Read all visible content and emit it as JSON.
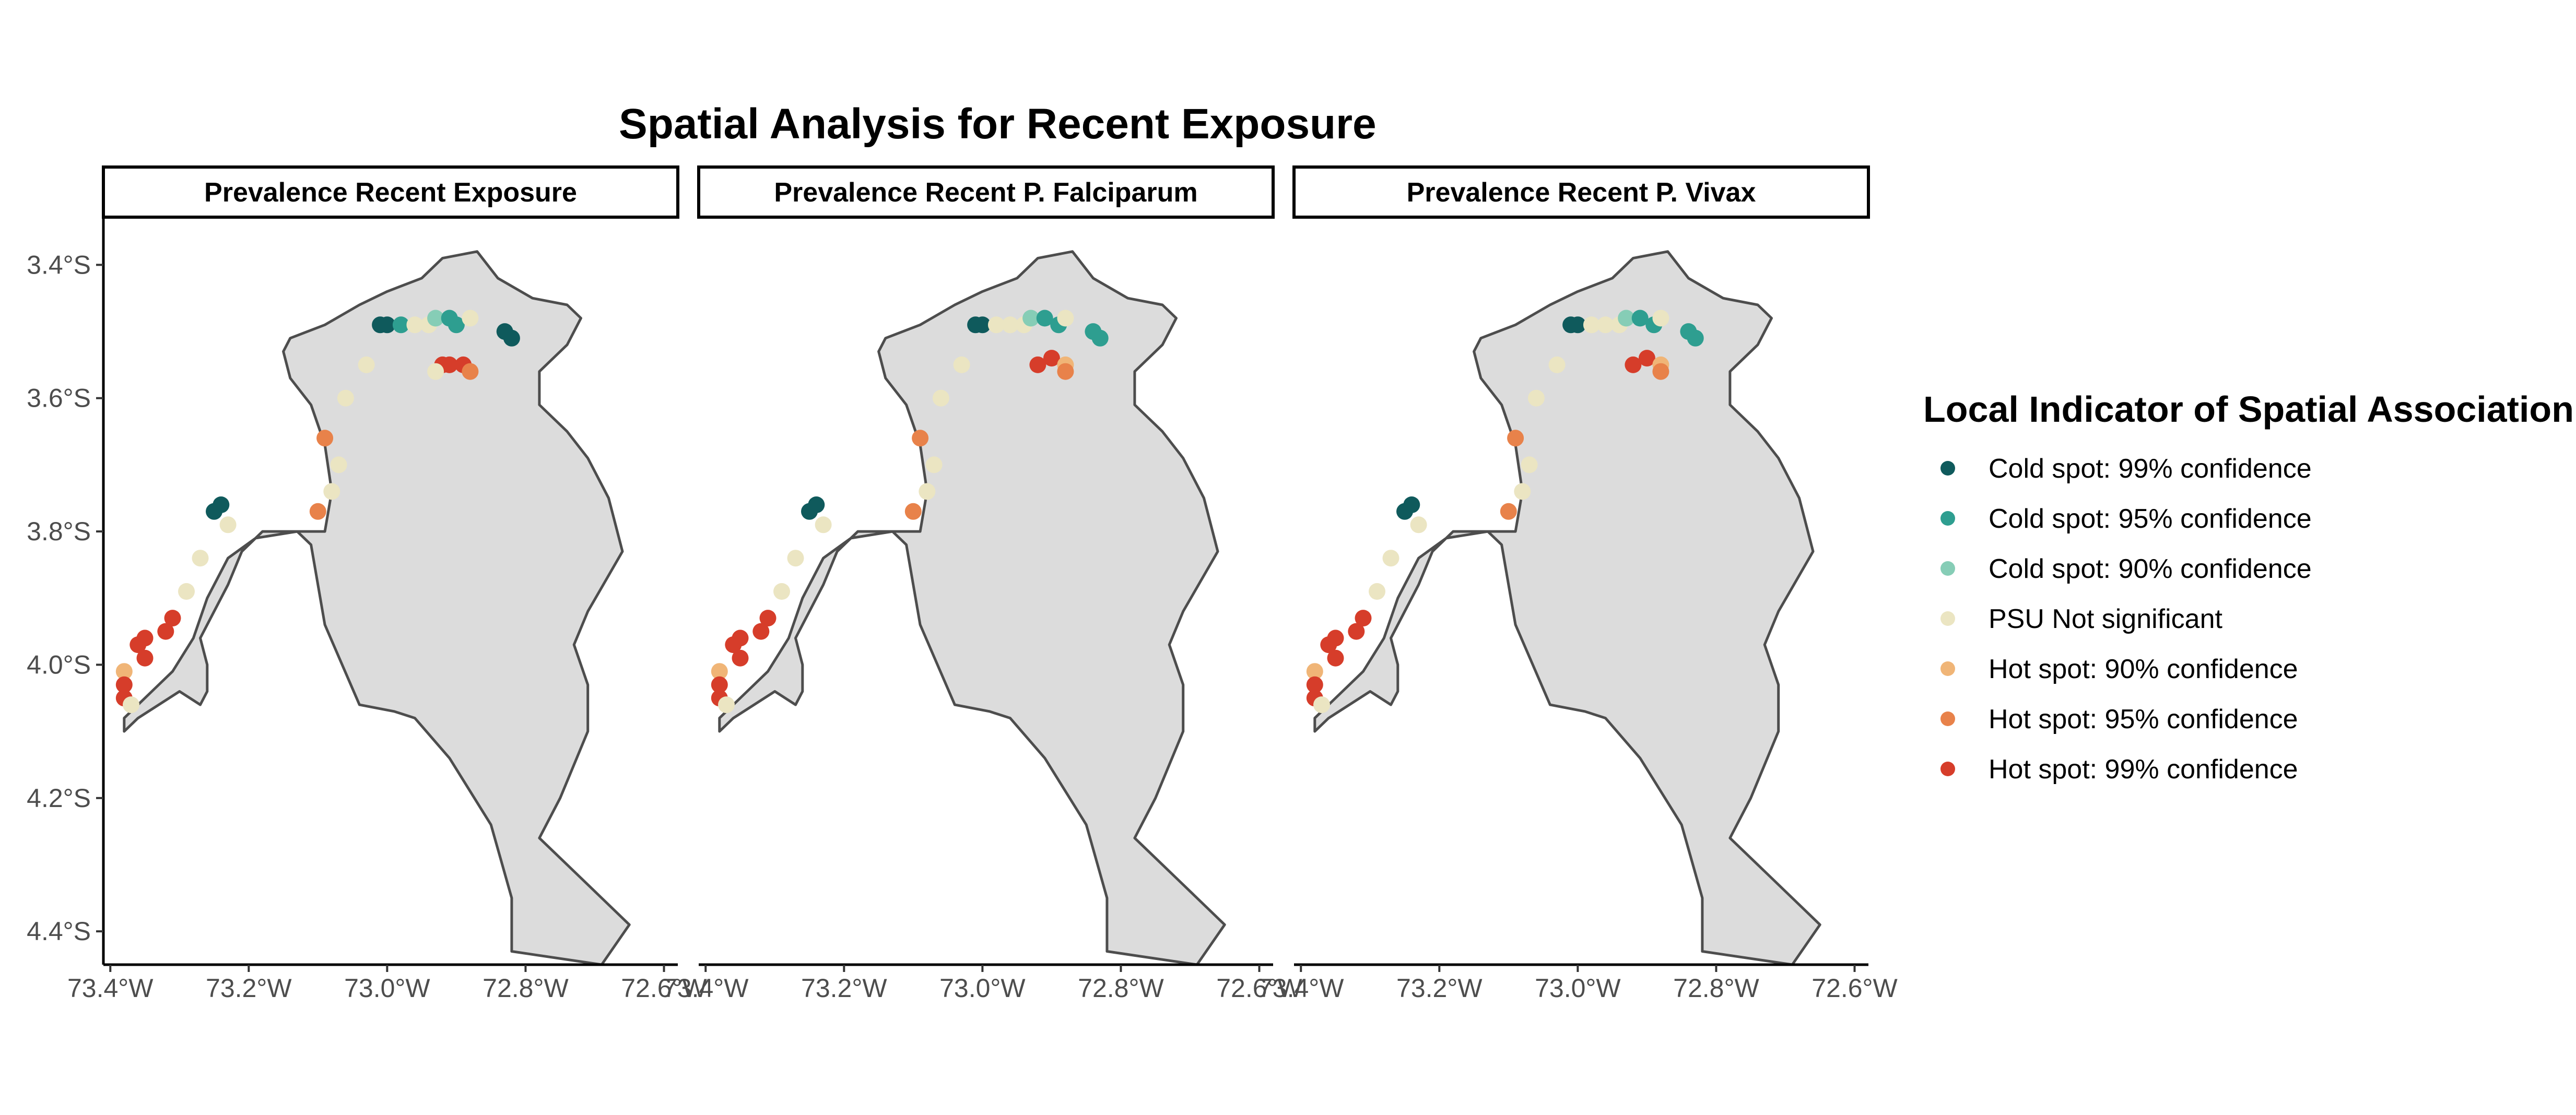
{
  "title": "Spatial Analysis for Recent Exposure",
  "panels": [
    {
      "label": "Prevalence Recent Exposure"
    },
    {
      "label": "Prevalence Recent P. Falciparum"
    },
    {
      "label": "Prevalence Recent P. Vivax"
    }
  ],
  "y_ticks": [
    "3.4°S",
    "3.6°S",
    "3.8°S",
    "4.0°S",
    "4.2°S",
    "4.4°S"
  ],
  "x_ticks": [
    "73.4°W",
    "73.2°W",
    "73.0°W",
    "72.8°W",
    "72.6°W"
  ],
  "legend": {
    "title": "Local Indicator of Spatial Association",
    "items": [
      {
        "label": "Cold spot: 99% confidence",
        "color": "#0f5a5c"
      },
      {
        "label": "Cold spot: 95% confidence",
        "color": "#2e9e90"
      },
      {
        "label": "Cold spot: 90% confidence",
        "color": "#86cdb6"
      },
      {
        "label": "PSU Not significant",
        "color": "#ebe5c2"
      },
      {
        "label": "Hot spot: 90% confidence",
        "color": "#f0b577"
      },
      {
        "label": "Hot spot: 95% confidence",
        "color": "#e8824a"
      },
      {
        "label": "Hot spot: 99% confidence",
        "color": "#d63d2a"
      }
    ]
  },
  "map_colors": {
    "region_fill": "#dcdcdc",
    "region_stroke": "#4d4d4d"
  },
  "chart_data": {
    "type": "map",
    "x_range": [
      -73.41,
      -72.58
    ],
    "y_range": [
      -4.45,
      -3.33
    ],
    "region": {
      "outline": [
        [
          -73.38,
          -4.1
        ],
        [
          -73.36,
          -4.08
        ],
        [
          -73.33,
          -4.06
        ],
        [
          -73.3,
          -4.04
        ],
        [
          -73.27,
          -4.06
        ],
        [
          -73.26,
          -4.04
        ],
        [
          -73.26,
          -4.0
        ],
        [
          -73.27,
          -3.96
        ],
        [
          -73.25,
          -3.92
        ],
        [
          -73.23,
          -3.88
        ],
        [
          -73.21,
          -3.83
        ],
        [
          -73.18,
          -3.8
        ],
        [
          -73.09,
          -3.8
        ],
        [
          -73.08,
          -3.74
        ],
        [
          -73.09,
          -3.67
        ],
        [
          -73.11,
          -3.61
        ],
        [
          -73.14,
          -3.57
        ],
        [
          -73.15,
          -3.53
        ],
        [
          -73.14,
          -3.51
        ],
        [
          -73.09,
          -3.49
        ],
        [
          -73.04,
          -3.46
        ],
        [
          -73.0,
          -3.44
        ],
        [
          -72.95,
          -3.42
        ],
        [
          -72.92,
          -3.39
        ],
        [
          -72.87,
          -3.38
        ],
        [
          -72.84,
          -3.42
        ],
        [
          -72.79,
          -3.45
        ],
        [
          -72.74,
          -3.46
        ],
        [
          -72.72,
          -3.48
        ],
        [
          -72.74,
          -3.52
        ],
        [
          -72.78,
          -3.56
        ],
        [
          -72.78,
          -3.61
        ],
        [
          -72.74,
          -3.65
        ],
        [
          -72.71,
          -3.69
        ],
        [
          -72.68,
          -3.75
        ],
        [
          -72.66,
          -3.83
        ],
        [
          -72.71,
          -3.92
        ],
        [
          -72.73,
          -3.97
        ],
        [
          -72.71,
          -4.03
        ],
        [
          -72.71,
          -4.1
        ],
        [
          -72.75,
          -4.2
        ],
        [
          -72.78,
          -4.26
        ],
        [
          -72.72,
          -4.32
        ],
        [
          -72.65,
          -4.39
        ],
        [
          -72.69,
          -4.45
        ],
        [
          -72.82,
          -4.43
        ],
        [
          -72.82,
          -4.35
        ],
        [
          -72.85,
          -4.24
        ],
        [
          -72.91,
          -4.14
        ],
        [
          -72.96,
          -4.08
        ],
        [
          -72.99,
          -4.07
        ],
        [
          -73.04,
          -4.06
        ],
        [
          -73.09,
          -3.94
        ],
        [
          -73.11,
          -3.82
        ],
        [
          -73.13,
          -3.8
        ],
        [
          -73.19,
          -3.81
        ],
        [
          -73.23,
          -3.84
        ],
        [
          -73.26,
          -3.9
        ],
        [
          -73.28,
          -3.96
        ],
        [
          -73.31,
          -4.01
        ],
        [
          -73.34,
          -4.04
        ],
        [
          -73.38,
          -4.08
        ],
        [
          -73.38,
          -4.1
        ]
      ]
    },
    "series": [
      {
        "points": [
          [
            -73.01,
            -3.49,
            "cold99"
          ],
          [
            -73.0,
            -3.49,
            "cold99"
          ],
          [
            -72.98,
            -3.49,
            "cold95"
          ],
          [
            -72.96,
            -3.49,
            "ns"
          ],
          [
            -72.94,
            -3.49,
            "ns"
          ],
          [
            -72.93,
            -3.48,
            "cold90"
          ],
          [
            -72.91,
            -3.48,
            "cold95"
          ],
          [
            -72.9,
            -3.49,
            "cold95"
          ],
          [
            -72.88,
            -3.48,
            "ns"
          ],
          [
            -72.83,
            -3.5,
            "cold99"
          ],
          [
            -72.82,
            -3.51,
            "cold99"
          ],
          [
            -72.92,
            -3.55,
            "hot99"
          ],
          [
            -72.91,
            -3.55,
            "hot99"
          ],
          [
            -72.89,
            -3.55,
            "hot99"
          ],
          [
            -72.88,
            -3.56,
            "hot95"
          ],
          [
            -72.93,
            -3.56,
            "ns"
          ],
          [
            -73.03,
            -3.55,
            "ns"
          ],
          [
            -73.06,
            -3.6,
            "ns"
          ],
          [
            -73.09,
            -3.66,
            "hot95"
          ],
          [
            -73.07,
            -3.7,
            "ns"
          ],
          [
            -73.08,
            -3.74,
            "ns"
          ],
          [
            -73.1,
            -3.77,
            "hot95"
          ],
          [
            -73.25,
            -3.77,
            "cold99"
          ],
          [
            -73.24,
            -3.76,
            "cold99"
          ],
          [
            -73.23,
            -3.79,
            "ns"
          ],
          [
            -73.27,
            -3.84,
            "ns"
          ],
          [
            -73.29,
            -3.89,
            "ns"
          ],
          [
            -73.31,
            -3.93,
            "hot99"
          ],
          [
            -73.32,
            -3.95,
            "hot99"
          ],
          [
            -73.35,
            -3.96,
            "hot99"
          ],
          [
            -73.36,
            -3.97,
            "hot99"
          ],
          [
            -73.35,
            -3.99,
            "hot99"
          ],
          [
            -73.38,
            -4.01,
            "hot90"
          ],
          [
            -73.38,
            -4.03,
            "hot99"
          ],
          [
            -73.38,
            -4.05,
            "hot99"
          ],
          [
            -73.37,
            -4.06,
            "ns"
          ]
        ]
      },
      {
        "points": [
          [
            -73.01,
            -3.49,
            "cold99"
          ],
          [
            -73.0,
            -3.49,
            "cold99"
          ],
          [
            -72.98,
            -3.49,
            "ns"
          ],
          [
            -72.96,
            -3.49,
            "ns"
          ],
          [
            -72.94,
            -3.49,
            "ns"
          ],
          [
            -72.93,
            -3.48,
            "cold90"
          ],
          [
            -72.91,
            -3.48,
            "cold95"
          ],
          [
            -72.89,
            -3.49,
            "cold95"
          ],
          [
            -72.88,
            -3.48,
            "ns"
          ],
          [
            -72.84,
            -3.5,
            "cold95"
          ],
          [
            -72.83,
            -3.51,
            "cold95"
          ],
          [
            -72.92,
            -3.55,
            "hot99"
          ],
          [
            -72.9,
            -3.54,
            "hot99"
          ],
          [
            -72.88,
            -3.55,
            "hot90"
          ],
          [
            -72.88,
            -3.56,
            "hot95"
          ],
          [
            -73.03,
            -3.55,
            "ns"
          ],
          [
            -73.06,
            -3.6,
            "ns"
          ],
          [
            -73.09,
            -3.66,
            "hot95"
          ],
          [
            -73.07,
            -3.7,
            "ns"
          ],
          [
            -73.08,
            -3.74,
            "ns"
          ],
          [
            -73.1,
            -3.77,
            "hot95"
          ],
          [
            -73.25,
            -3.77,
            "cold99"
          ],
          [
            -73.24,
            -3.76,
            "cold99"
          ],
          [
            -73.23,
            -3.79,
            "ns"
          ],
          [
            -73.27,
            -3.84,
            "ns"
          ],
          [
            -73.29,
            -3.89,
            "ns"
          ],
          [
            -73.31,
            -3.93,
            "hot99"
          ],
          [
            -73.32,
            -3.95,
            "hot99"
          ],
          [
            -73.35,
            -3.96,
            "hot99"
          ],
          [
            -73.36,
            -3.97,
            "hot99"
          ],
          [
            -73.35,
            -3.99,
            "hot99"
          ],
          [
            -73.38,
            -4.01,
            "hot90"
          ],
          [
            -73.38,
            -4.03,
            "hot99"
          ],
          [
            -73.38,
            -4.05,
            "hot99"
          ],
          [
            -73.37,
            -4.06,
            "ns"
          ]
        ]
      },
      {
        "points": [
          [
            -73.01,
            -3.49,
            "cold99"
          ],
          [
            -73.0,
            -3.49,
            "cold99"
          ],
          [
            -72.98,
            -3.49,
            "ns"
          ],
          [
            -72.96,
            -3.49,
            "ns"
          ],
          [
            -72.94,
            -3.49,
            "ns"
          ],
          [
            -72.93,
            -3.48,
            "cold90"
          ],
          [
            -72.91,
            -3.48,
            "cold95"
          ],
          [
            -72.89,
            -3.49,
            "cold95"
          ],
          [
            -72.88,
            -3.48,
            "ns"
          ],
          [
            -72.84,
            -3.5,
            "cold95"
          ],
          [
            -72.83,
            -3.51,
            "cold95"
          ],
          [
            -72.92,
            -3.55,
            "hot99"
          ],
          [
            -72.9,
            -3.54,
            "hot99"
          ],
          [
            -72.88,
            -3.55,
            "hot90"
          ],
          [
            -72.88,
            -3.56,
            "hot95"
          ],
          [
            -73.03,
            -3.55,
            "ns"
          ],
          [
            -73.06,
            -3.6,
            "ns"
          ],
          [
            -73.09,
            -3.66,
            "hot95"
          ],
          [
            -73.07,
            -3.7,
            "ns"
          ],
          [
            -73.08,
            -3.74,
            "ns"
          ],
          [
            -73.1,
            -3.77,
            "hot95"
          ],
          [
            -73.25,
            -3.77,
            "cold99"
          ],
          [
            -73.24,
            -3.76,
            "cold99"
          ],
          [
            -73.23,
            -3.79,
            "ns"
          ],
          [
            -73.27,
            -3.84,
            "ns"
          ],
          [
            -73.29,
            -3.89,
            "ns"
          ],
          [
            -73.31,
            -3.93,
            "hot99"
          ],
          [
            -73.32,
            -3.95,
            "hot99"
          ],
          [
            -73.35,
            -3.96,
            "hot99"
          ],
          [
            -73.36,
            -3.97,
            "hot99"
          ],
          [
            -73.35,
            -3.99,
            "hot99"
          ],
          [
            -73.38,
            -4.01,
            "hot90"
          ],
          [
            -73.38,
            -4.03,
            "hot99"
          ],
          [
            -73.38,
            -4.05,
            "hot99"
          ],
          [
            -73.37,
            -4.06,
            "ns"
          ]
        ]
      }
    ]
  }
}
